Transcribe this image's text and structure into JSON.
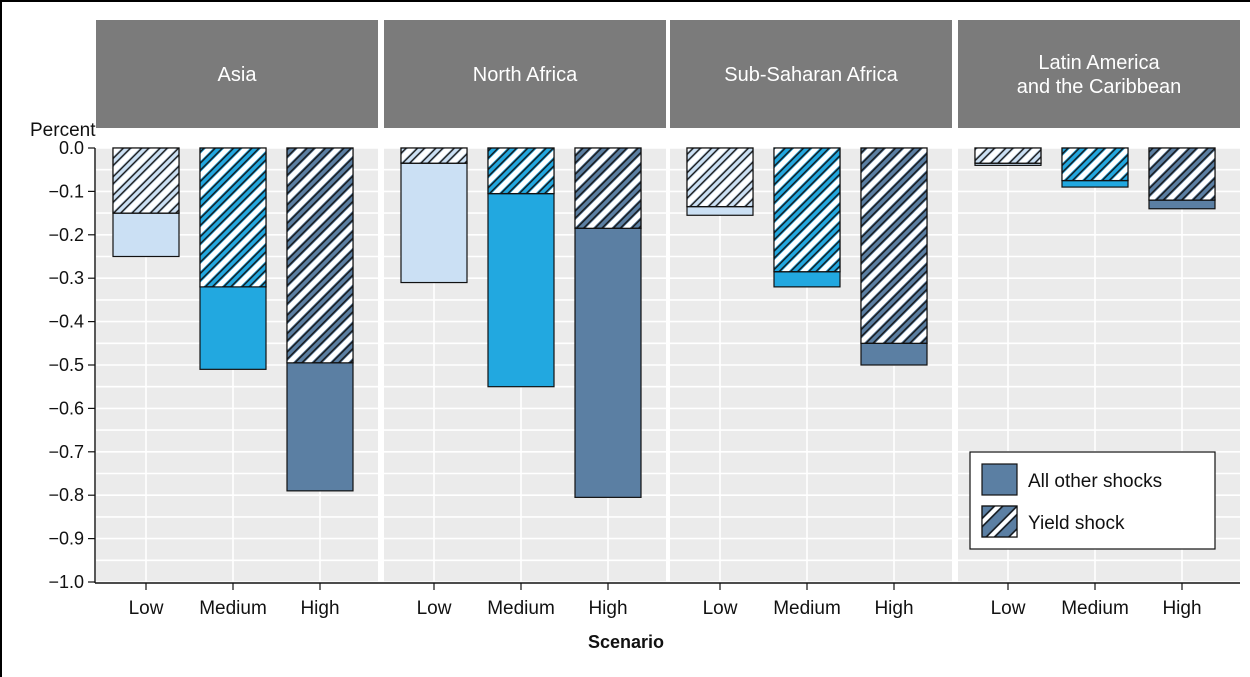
{
  "chart_data": {
    "type": "bar",
    "stacked": true,
    "facet_labels": [
      "Asia",
      "North Africa",
      "Sub-Saharan  Africa",
      "Latin America\nand the Caribbean"
    ],
    "categories": [
      "Low",
      "Medium",
      "High"
    ],
    "ylabel": "Percent",
    "xlabel": "Scenario",
    "ylim": [
      -1.0,
      0.0
    ],
    "yticks": [
      "0.0",
      "−0.1",
      "−0.2",
      "−0.3",
      "−0.4",
      "−0.5",
      "−0.6",
      "−0.7",
      "−0.8",
      "−0.9",
      "−1.0"
    ],
    "grid": true,
    "legend_position": "bottom-right",
    "series": [
      {
        "name": "Yield shock",
        "pattern": "hatched",
        "values": [
          [
            -0.15,
            -0.32,
            -0.495
          ],
          [
            -0.035,
            -0.105,
            -0.185
          ],
          [
            -0.135,
            -0.285,
            -0.45
          ],
          [
            -0.035,
            -0.075,
            -0.12
          ]
        ]
      },
      {
        "name": "All other shocks",
        "pattern": "solid",
        "values": [
          [
            -0.1,
            -0.19,
            -0.295
          ],
          [
            -0.275,
            -0.445,
            -0.62
          ],
          [
            -0.02,
            -0.035,
            -0.05
          ],
          [
            -0.005,
            -0.015,
            -0.02
          ]
        ]
      }
    ],
    "scenario_colors": {
      "Low": "#cbe0f4",
      "Medium": "#22a8e0",
      "High": "#5b7fa3"
    },
    "facet_header_color": "#7b7b7b",
    "panel_background": "#ebebeb",
    "legend": [
      {
        "label": "All other shocks",
        "icon": "solid-swatch"
      },
      {
        "label": "Yield shock",
        "icon": "hatched-swatch"
      }
    ]
  }
}
